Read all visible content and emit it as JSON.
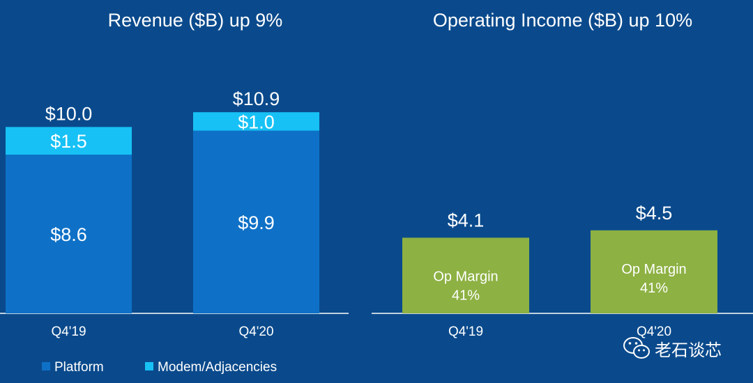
{
  "colors": {
    "background": "#0a4a8c",
    "platform": "#0e71c7",
    "modem": "#17c1f5",
    "op_income": "#8db143",
    "axis": "#ffffff",
    "text": "#ffffff"
  },
  "chart_data": [
    {
      "type": "bar",
      "stacked": true,
      "title": "Revenue ($B) up 9%",
      "categories": [
        "Q4'19",
        "Q4'20"
      ],
      "series": [
        {
          "name": "Platform",
          "values": [
            8.6,
            9.9
          ],
          "labels": [
            "$8.6",
            "$9.9"
          ]
        },
        {
          "name": "Modem/Adjacencies",
          "values": [
            1.5,
            1.0
          ],
          "labels": [
            "$1.5",
            "$1.0"
          ]
        }
      ],
      "totals": [
        10.0,
        10.9
      ],
      "total_labels": [
        "$10.0",
        "$10.9"
      ],
      "ylim": [
        0,
        12.5
      ]
    },
    {
      "type": "bar",
      "title": "Operating Income ($B) up 10%",
      "categories": [
        "Q4'19",
        "Q4'20"
      ],
      "values": [
        4.1,
        4.5
      ],
      "value_labels": [
        "$4.1",
        "$4.5"
      ],
      "inner_label": "Op Margin",
      "margins": [
        "41%",
        "41%"
      ],
      "ylim": [
        0,
        12.5
      ]
    }
  ],
  "legend": {
    "items": [
      {
        "name": "Platform"
      },
      {
        "name": "Modem/Adjacencies"
      }
    ]
  },
  "watermark": {
    "text": "老石谈芯",
    "icon": "wechat-icon"
  }
}
